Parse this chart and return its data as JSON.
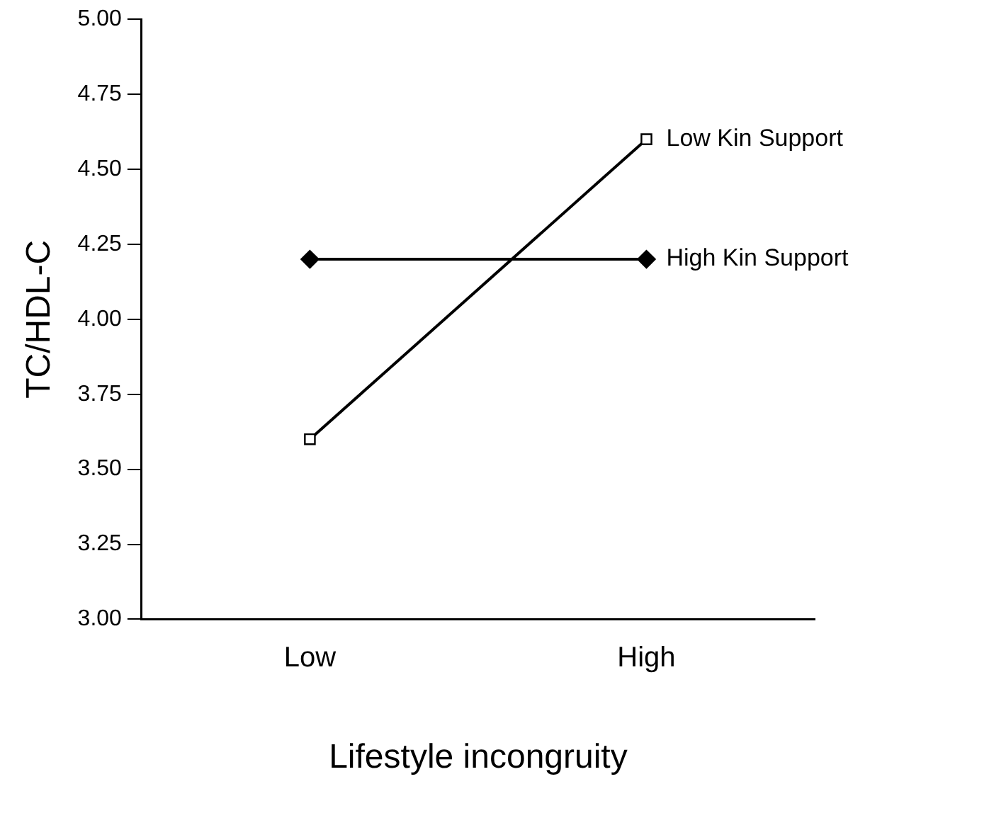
{
  "chart_data": {
    "type": "line",
    "xlabel": "Lifestyle incongruity",
    "ylabel": "TC/HDL-C",
    "categories": [
      "Low",
      "High"
    ],
    "series": [
      {
        "name": "Low Kin Support",
        "color": "#000000",
        "values": [
          3.6,
          4.6
        ],
        "marker": "square"
      },
      {
        "name": "High Kin Support",
        "color": "#000000",
        "values": [
          4.2,
          4.2
        ],
        "marker": "diamond"
      }
    ],
    "ylim": [
      3,
      5
    ],
    "yticks": [
      {
        "value": 3,
        "label": "3.00"
      },
      {
        "value": 3.25,
        "label": "3.25"
      },
      {
        "value": 3.5,
        "label": "3.50"
      },
      {
        "value": 3.75,
        "label": "3.75"
      },
      {
        "value": 4,
        "label": "4.00"
      },
      {
        "value": 4.25,
        "label": "4.25"
      },
      {
        "value": 4.5,
        "label": "4.50"
      },
      {
        "value": 4.75,
        "label": "4.75"
      },
      {
        "value": 5,
        "label": "5.00"
      }
    ],
    "grid": false,
    "legend": false,
    "line_style": "solid"
  }
}
